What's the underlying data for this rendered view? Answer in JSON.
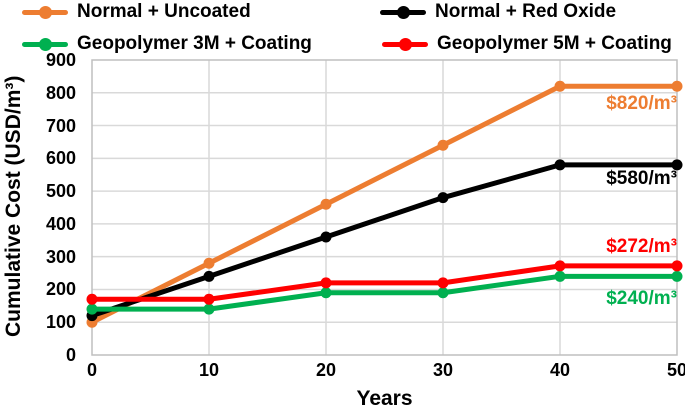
{
  "chart_data": {
    "type": "line",
    "title": "",
    "xlabel": "Years",
    "ylabel": "Cumulative Cost (USD/m³)",
    "xlim": [
      0,
      50
    ],
    "ylim": [
      0,
      900
    ],
    "x": [
      0,
      10,
      20,
      30,
      40,
      50
    ],
    "x_ticks": [
      0,
      10,
      20,
      30,
      40,
      50
    ],
    "y_ticks": [
      0,
      100,
      200,
      300,
      400,
      500,
      600,
      700,
      800,
      900
    ],
    "grid": "light gray horizontal and vertical gridlines, plot area outlined",
    "legend_position": "top, two columns, two rows",
    "series": [
      {
        "name": "Normal + Uncoated",
        "color": "#ED7D31",
        "values": [
          100,
          280,
          460,
          640,
          820,
          820
        ],
        "annotation": "$820/m³"
      },
      {
        "name": "Normal + Red Oxide",
        "color": "#000000",
        "values": [
          120,
          240,
          360,
          480,
          580,
          580
        ],
        "annotation": "$580/m³"
      },
      {
        "name": "Geopolymer 3M + Coating",
        "color": "#00B050",
        "values": [
          140,
          140,
          190,
          190,
          240,
          240
        ],
        "annotation": "$240/m³"
      },
      {
        "name": "Geopolymer 5M + Coating",
        "color": "#FF0000",
        "values": [
          170,
          170,
          220,
          220,
          272,
          272
        ],
        "annotation": "$272/m³"
      }
    ]
  },
  "colors": {
    "background": "#FFFFFF",
    "gridline": "#D9D9D9",
    "axis": "#BFBFBF",
    "text": "#000000"
  }
}
